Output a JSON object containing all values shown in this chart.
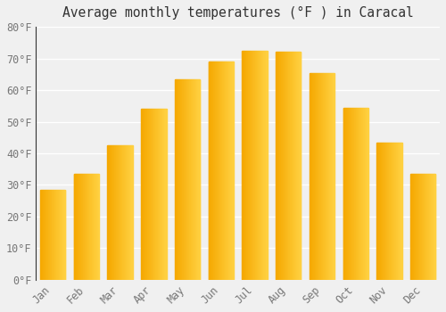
{
  "title": "Average monthly temperatures (°F ) in Caracal",
  "months": [
    "Jan",
    "Feb",
    "Mar",
    "Apr",
    "May",
    "Jun",
    "Jul",
    "Aug",
    "Sep",
    "Oct",
    "Nov",
    "Dec"
  ],
  "values": [
    28.5,
    33.5,
    42.5,
    54.0,
    63.5,
    69.0,
    72.5,
    72.0,
    65.5,
    54.5,
    43.5,
    33.5
  ],
  "bar_color_left": "#F5A800",
  "bar_color_right": "#FFD040",
  "ylim": [
    0,
    80
  ],
  "ytick_step": 10,
  "background_color": "#f0f0f0",
  "grid_color": "#ffffff",
  "title_fontsize": 10.5,
  "tick_fontsize": 8.5,
  "font_family": "monospace",
  "bar_width": 0.75,
  "spine_color": "#333333"
}
